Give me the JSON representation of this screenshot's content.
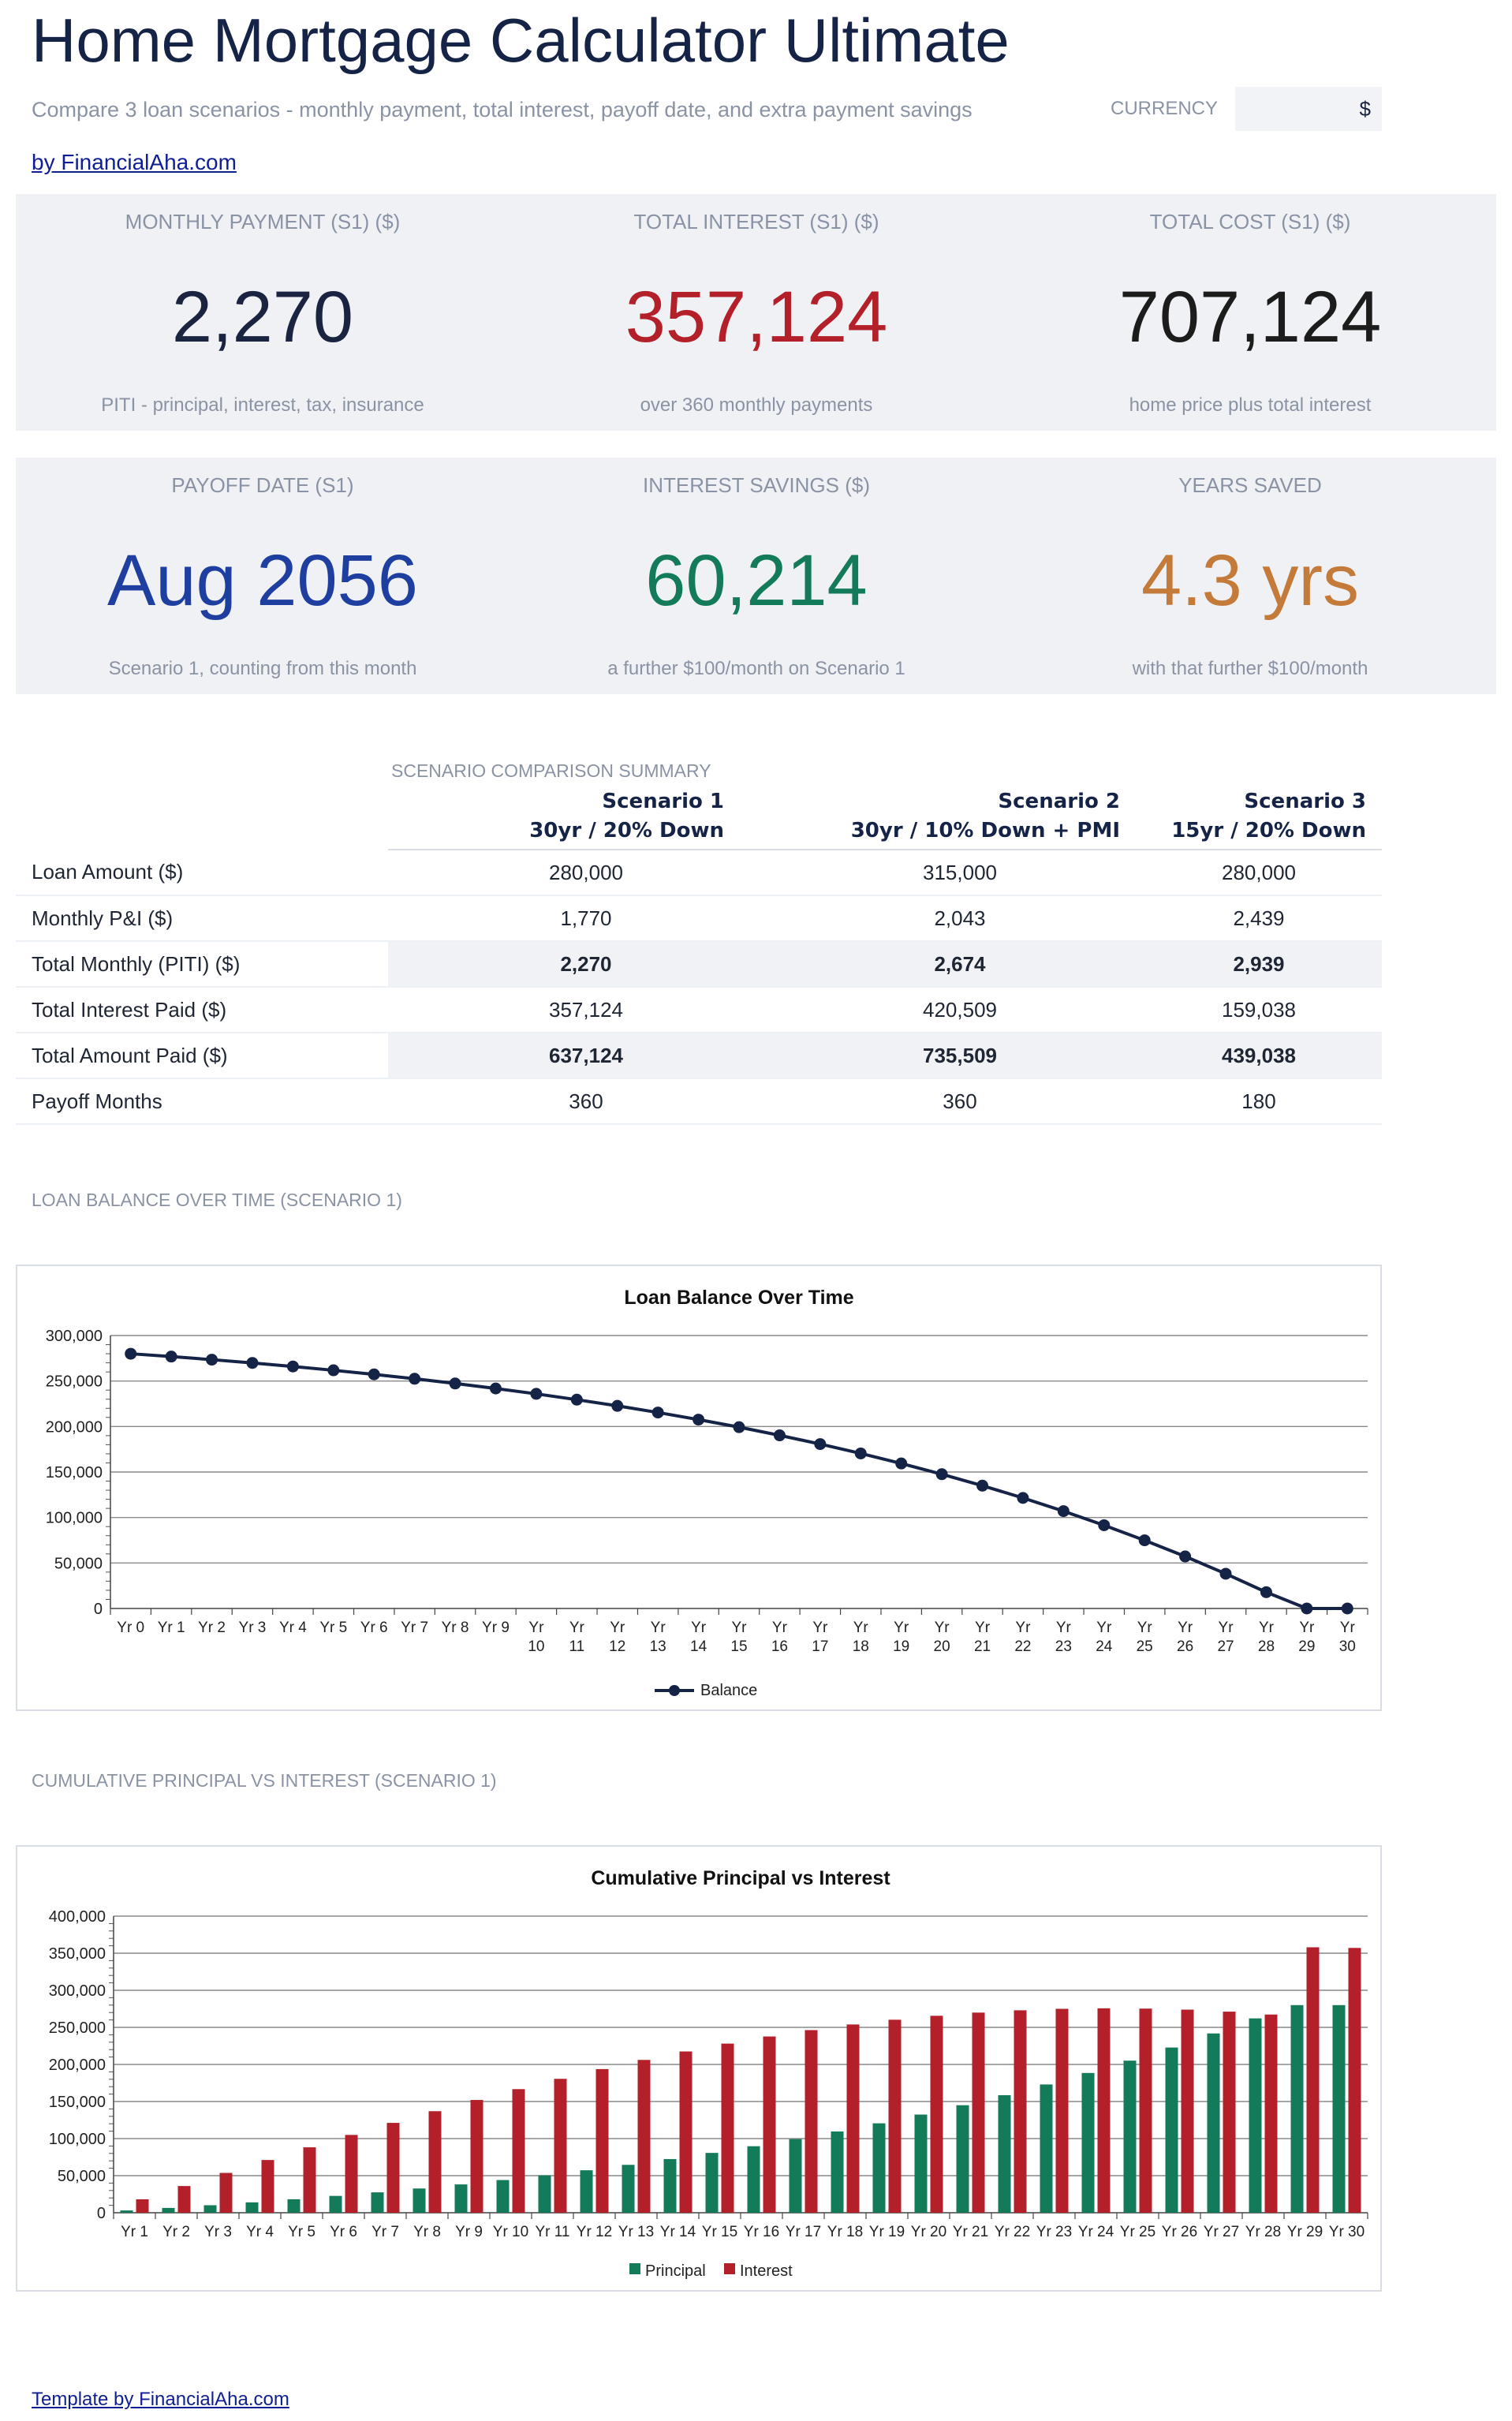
{
  "header": {
    "title": "Home Mortgage Calculator Ultimate",
    "subtitle": "Compare 3 loan scenarios - monthly payment, total interest, payoff date, and extra payment savings",
    "currency_label": "CURRENCY",
    "currency_value": "$",
    "by_link": "by FinancialAha.com"
  },
  "kpis": [
    {
      "label": "MONTHLY PAYMENT (S1) ($)",
      "value": "2,270",
      "sub": "PITI - principal, interest, tax, insurance",
      "color": "#1a2440"
    },
    {
      "label": "TOTAL INTEREST (S1) ($)",
      "value": "357,124",
      "sub": "over 360 monthly payments",
      "color": "#b3202a"
    },
    {
      "label": "TOTAL COST (S1) ($)",
      "value": "707,124",
      "sub": "home price plus total interest",
      "color": "#1c1c1c"
    },
    {
      "label": "PAYOFF DATE (S1)",
      "value": "Aug 2056",
      "sub": "Scenario 1, counting from this month",
      "color": "#1f3fa0"
    },
    {
      "label": "INTEREST SAVINGS ($)",
      "value": "60,214",
      "sub": "a further $100/month on Scenario 1",
      "color": "#137a5a"
    },
    {
      "label": "YEARS SAVED",
      "value": "4.3 yrs",
      "sub": "with that further $100/month",
      "color": "#c47b3a"
    }
  ],
  "comparison": {
    "label": "SCENARIO COMPARISON SUMMARY",
    "scenarios": [
      {
        "name": "Scenario 1",
        "desc": "30yr / 20% Down"
      },
      {
        "name": "Scenario 2",
        "desc": "30yr / 10% Down + PMI"
      },
      {
        "name": "Scenario 3",
        "desc": "15yr / 20% Down"
      }
    ],
    "rows": [
      {
        "label": "Loan Amount ($)",
        "values": [
          "280,000",
          "315,000",
          "280,000"
        ],
        "bold": false
      },
      {
        "label": "Monthly P&I ($)",
        "values": [
          "1,770",
          "2,043",
          "2,439"
        ],
        "bold": false
      },
      {
        "label": "Total Monthly (PITI) ($)",
        "values": [
          "2,270",
          "2,674",
          "2,939"
        ],
        "bold": true
      },
      {
        "label": "Total Interest Paid ($)",
        "values": [
          "357,124",
          "420,509",
          "159,038"
        ],
        "bold": false
      },
      {
        "label": "Total Amount Paid ($)",
        "values": [
          "637,124",
          "735,509",
          "439,038"
        ],
        "bold": true
      },
      {
        "label": "Payoff Months",
        "values": [
          "360",
          "360",
          "180"
        ],
        "bold": false
      }
    ]
  },
  "balance_section_label": "LOAN BALANCE OVER TIME (SCENARIO 1)",
  "cumulative_section_label": "CUMULATIVE PRINCIPAL VS INTEREST (SCENARIO 1)",
  "chart_data": [
    {
      "type": "line",
      "title": "Loan Balance Over Time",
      "categories": [
        "Yr 0",
        "Yr 1",
        "Yr 2",
        "Yr 3",
        "Yr 4",
        "Yr 5",
        "Yr 6",
        "Yr 7",
        "Yr 8",
        "Yr 9",
        "Yr 10",
        "Yr 11",
        "Yr 12",
        "Yr 13",
        "Yr 14",
        "Yr 15",
        "Yr 16",
        "Yr 17",
        "Yr 18",
        "Yr 19",
        "Yr 20",
        "Yr 21",
        "Yr 22",
        "Yr 23",
        "Yr 24",
        "Yr 25",
        "Yr 26",
        "Yr 27",
        "Yr 28",
        "Yr 29",
        "Yr 30"
      ],
      "series": [
        {
          "name": "Balance",
          "color": "#152347",
          "values": [
            280000,
            276900,
            273500,
            269900,
            266000,
            261800,
            257300,
            252500,
            247300,
            241800,
            235900,
            229500,
            222700,
            215400,
            207600,
            199300,
            190300,
            180700,
            170400,
            159400,
            147600,
            135000,
            121500,
            107000,
            91500,
            74900,
            57200,
            38200,
            17900,
            0,
            0
          ]
        }
      ],
      "ylim": [
        0,
        300000
      ],
      "yticks": [
        "0",
        "50,000",
        "100,000",
        "150,000",
        "200,000",
        "250,000",
        "300,000"
      ],
      "legend": "bottom",
      "grid": true
    },
    {
      "type": "bar",
      "title": "Cumulative Principal vs Interest",
      "categories": [
        "Yr 1",
        "Yr 2",
        "Yr 3",
        "Yr 4",
        "Yr 5",
        "Yr 6",
        "Yr 7",
        "Yr 8",
        "Yr 9",
        "Yr 10",
        "Yr 11",
        "Yr 12",
        "Yr 13",
        "Yr 14",
        "Yr 15",
        "Yr 16",
        "Yr 17",
        "Yr 18",
        "Yr 19",
        "Yr 20",
        "Yr 21",
        "Yr 22",
        "Yr 23",
        "Yr 24",
        "Yr 25",
        "Yr 26",
        "Yr 27",
        "Yr 28",
        "Yr 29",
        "Yr 30"
      ],
      "series": [
        {
          "name": "Principal",
          "color": "#137a5a",
          "values": [
            3100,
            6500,
            10100,
            14000,
            18200,
            22700,
            27500,
            32700,
            38200,
            44100,
            50500,
            57300,
            64600,
            72400,
            80700,
            89700,
            99300,
            109600,
            120600,
            132400,
            145000,
            158500,
            173000,
            188500,
            205100,
            222800,
            241800,
            262100,
            280000,
            280000
          ]
        },
        {
          "name": "Interest",
          "color": "#b3202a",
          "values": [
            18140,
            36030,
            53720,
            71140,
            88240,
            104940,
            121200,
            136940,
            152100,
            166700,
            180600,
            193700,
            206100,
            217500,
            228100,
            237700,
            246300,
            253900,
            260300,
            265600,
            269900,
            273000,
            275000,
            275700,
            275300,
            273900,
            271200,
            267300,
            358000,
            357124
          ]
        }
      ],
      "ylim": [
        0,
        400000
      ],
      "yticks": [
        "0",
        "50,000",
        "100,000",
        "150,000",
        "200,000",
        "250,000",
        "300,000",
        "350,000",
        "400,000"
      ],
      "legend": "bottom",
      "grid": true
    }
  ],
  "footer_link": "Template by FinancialAha.com"
}
